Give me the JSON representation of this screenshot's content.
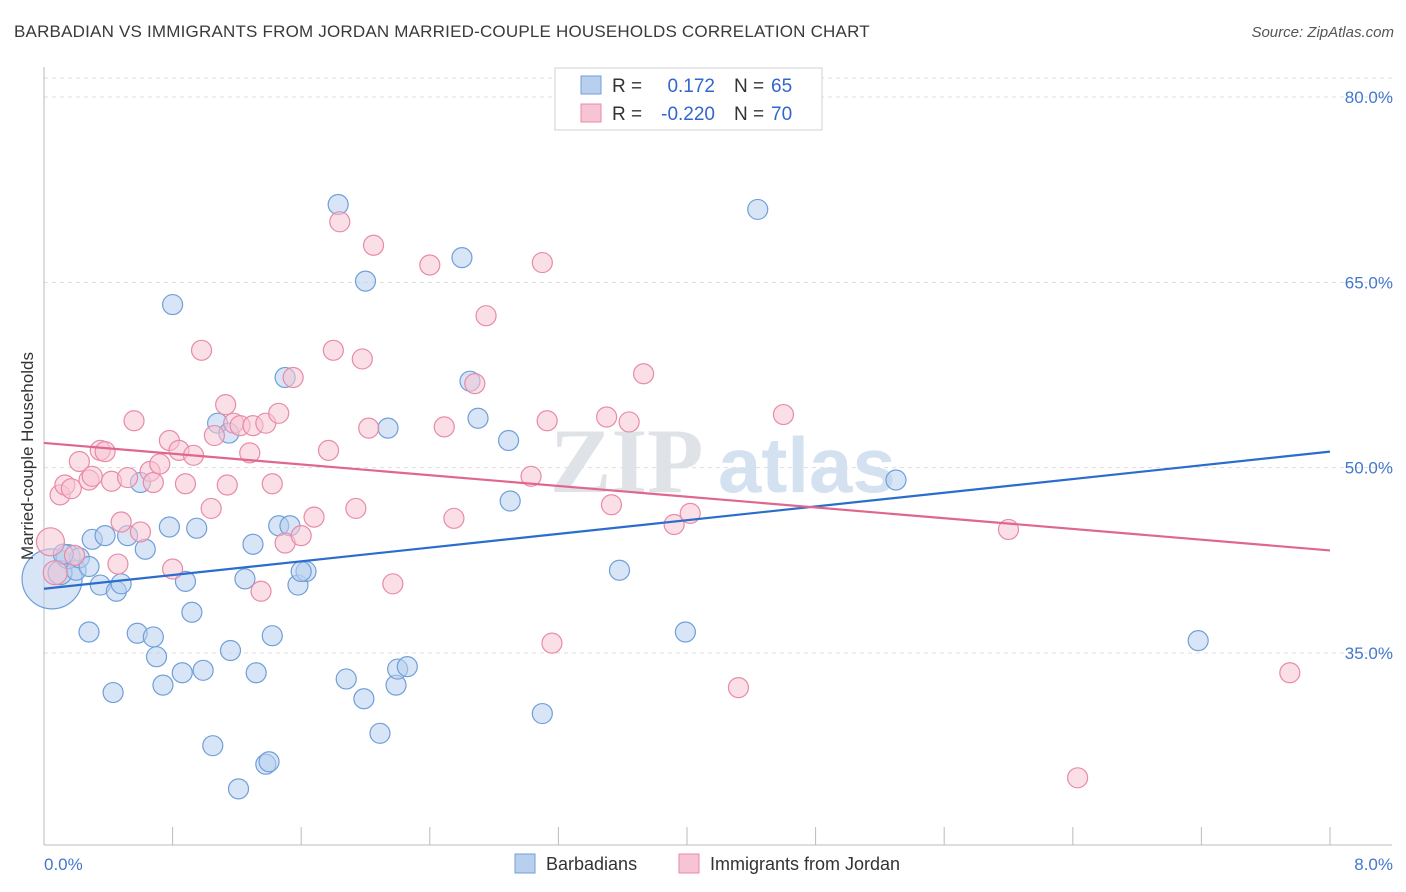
{
  "title": "BARBADIAN VS IMMIGRANTS FROM JORDAN MARRIED-COUPLE HOUSEHOLDS CORRELATION CHART",
  "source": "Source: ZipAtlas.com",
  "watermark": {
    "zip": "ZIP",
    "atlas": "atlas"
  },
  "legend": {
    "r_label": "R =",
    "n_label": "N =",
    "series1": {
      "r": "0.172",
      "n": "65"
    },
    "series2": {
      "r": "-0.220",
      "n": "70"
    }
  },
  "bottom_legend": [
    "Barbadians",
    "Immigrants from Jordan"
  ],
  "colors": {
    "blue_fill": "#b8d0ee",
    "blue_stroke": "#6f9fd8",
    "blue_line": "#2a6dcc",
    "pink_fill": "#f7c4d3",
    "pink_stroke": "#e88aa8",
    "pink_line": "#e0668f"
  },
  "chart_data": {
    "type": "scatter",
    "title": "BARBADIAN VS IMMIGRANTS FROM JORDAN MARRIED-COUPLE HOUSEHOLDS CORRELATION CHART",
    "xlabel": "",
    "ylabel": "Married-couple Households",
    "xlim": [
      0.0,
      8.0
    ],
    "ylim": [
      21.0,
      82.0
    ],
    "x_tick_labels": [
      "0.0%",
      "8.0%"
    ],
    "y_ticks": [
      35.0,
      50.0,
      65.0,
      80.0
    ],
    "y_tick_labels": [
      "35.0%",
      "50.0%",
      "65.0%",
      "80.0%"
    ],
    "grid": true,
    "series": [
      {
        "name": "Barbadians",
        "color": "#6f9fd8",
        "trend": {
          "x": [
            0.0,
            8.0
          ],
          "y": [
            40.2,
            51.3
          ]
        },
        "points": [
          [
            0.05,
            41.0,
            30
          ],
          [
            0.1,
            41.5,
            12
          ],
          [
            0.15,
            42.8,
            12
          ],
          [
            0.2,
            41.7,
            10
          ],
          [
            0.22,
            42.7,
            10
          ],
          [
            0.28,
            42.0,
            10
          ],
          [
            0.3,
            44.2,
            10
          ],
          [
            0.35,
            40.5,
            10
          ],
          [
            0.38,
            44.5,
            10
          ],
          [
            0.45,
            40.0,
            10
          ],
          [
            0.48,
            40.6,
            10
          ],
          [
            0.28,
            36.7,
            10
          ],
          [
            0.52,
            44.5,
            10
          ],
          [
            0.58,
            36.6,
            10
          ],
          [
            0.63,
            43.4,
            10
          ],
          [
            0.68,
            36.3,
            10
          ],
          [
            0.7,
            34.7,
            10
          ],
          [
            0.74,
            32.4,
            10
          ],
          [
            0.78,
            45.2,
            10
          ],
          [
            0.8,
            63.2,
            10
          ],
          [
            0.86,
            33.4,
            10
          ],
          [
            0.88,
            40.8,
            10
          ],
          [
            0.92,
            38.3,
            10
          ],
          [
            0.95,
            45.1,
            10
          ],
          [
            0.99,
            33.6,
            10
          ],
          [
            1.05,
            27.5,
            10
          ],
          [
            1.08,
            53.6,
            10
          ],
          [
            1.15,
            52.8,
            10
          ],
          [
            1.16,
            35.2,
            10
          ],
          [
            1.21,
            24.0,
            10
          ],
          [
            1.25,
            41.0,
            10
          ],
          [
            1.3,
            43.8,
            10
          ],
          [
            1.32,
            33.4,
            10
          ],
          [
            1.38,
            26.0,
            10
          ],
          [
            1.4,
            26.2,
            10
          ],
          [
            1.42,
            36.4,
            10
          ],
          [
            1.46,
            45.3,
            10
          ],
          [
            1.53,
            45.3,
            10
          ],
          [
            1.5,
            57.3,
            10
          ],
          [
            1.58,
            40.5,
            10
          ],
          [
            1.63,
            41.6,
            10
          ],
          [
            1.6,
            41.6,
            10
          ],
          [
            0.43,
            31.8,
            10
          ],
          [
            1.83,
            71.3,
            10
          ],
          [
            1.88,
            32.9,
            10
          ],
          [
            1.99,
            31.3,
            10
          ],
          [
            2.0,
            65.1,
            10
          ],
          [
            2.09,
            28.5,
            10
          ],
          [
            2.14,
            53.2,
            10
          ],
          [
            2.19,
            32.4,
            10
          ],
          [
            2.2,
            33.7,
            10
          ],
          [
            2.26,
            33.9,
            10
          ],
          [
            2.6,
            67.0,
            10
          ],
          [
            2.65,
            57.0,
            10
          ],
          [
            2.7,
            54.0,
            10
          ],
          [
            2.89,
            52.2,
            10
          ],
          [
            2.9,
            47.3,
            10
          ],
          [
            3.1,
            30.1,
            10
          ],
          [
            3.58,
            41.7,
            10
          ],
          [
            3.99,
            36.7,
            10
          ],
          [
            4.44,
            70.9,
            10
          ],
          [
            5.3,
            49.0,
            10
          ],
          [
            7.18,
            36.0,
            10
          ],
          [
            0.12,
            43.0,
            10
          ],
          [
            0.6,
            48.8,
            10
          ]
        ]
      },
      {
        "name": "Immigrants from Jordan",
        "color": "#e88aa8",
        "trend": {
          "x": [
            0.0,
            8.0
          ],
          "y": [
            52.0,
            43.3
          ]
        },
        "points": [
          [
            0.04,
            44.0,
            14
          ],
          [
            0.07,
            41.5,
            12
          ],
          [
            0.1,
            47.8,
            10
          ],
          [
            0.13,
            48.6,
            10
          ],
          [
            0.17,
            48.3,
            10
          ],
          [
            0.22,
            50.5,
            10
          ],
          [
            0.28,
            49.0,
            10
          ],
          [
            0.3,
            49.3,
            10
          ],
          [
            0.35,
            51.4,
            10
          ],
          [
            0.38,
            51.3,
            10
          ],
          [
            0.42,
            48.9,
            10
          ],
          [
            0.46,
            42.2,
            10
          ],
          [
            0.48,
            45.6,
            10
          ],
          [
            0.52,
            49.2,
            10
          ],
          [
            0.56,
            53.8,
            10
          ],
          [
            0.6,
            44.8,
            10
          ],
          [
            0.66,
            49.7,
            10
          ],
          [
            0.68,
            48.8,
            10
          ],
          [
            0.72,
            50.3,
            10
          ],
          [
            0.78,
            52.2,
            10
          ],
          [
            0.8,
            41.8,
            10
          ],
          [
            0.84,
            51.4,
            10
          ],
          [
            0.88,
            48.7,
            10
          ],
          [
            0.93,
            51.0,
            10
          ],
          [
            0.98,
            59.5,
            10
          ],
          [
            1.04,
            46.7,
            10
          ],
          [
            1.06,
            52.6,
            10
          ],
          [
            1.13,
            55.1,
            10
          ],
          [
            1.14,
            48.6,
            10
          ],
          [
            1.18,
            53.6,
            10
          ],
          [
            1.22,
            53.4,
            10
          ],
          [
            1.28,
            51.2,
            10
          ],
          [
            1.3,
            53.4,
            10
          ],
          [
            1.35,
            40.0,
            10
          ],
          [
            1.38,
            53.6,
            10
          ],
          [
            1.42,
            48.7,
            10
          ],
          [
            1.46,
            54.4,
            10
          ],
          [
            1.5,
            43.9,
            10
          ],
          [
            1.55,
            57.3,
            10
          ],
          [
            1.6,
            44.5,
            10
          ],
          [
            1.68,
            46.0,
            10
          ],
          [
            1.77,
            51.4,
            10
          ],
          [
            1.8,
            59.5,
            10
          ],
          [
            1.84,
            69.9,
            10
          ],
          [
            1.94,
            46.7,
            10
          ],
          [
            1.98,
            58.8,
            10
          ],
          [
            2.02,
            53.2,
            10
          ],
          [
            2.05,
            68.0,
            10
          ],
          [
            2.17,
            40.6,
            10
          ],
          [
            2.4,
            66.4,
            10
          ],
          [
            2.49,
            53.3,
            10
          ],
          [
            2.55,
            45.9,
            10
          ],
          [
            2.68,
            56.8,
            10
          ],
          [
            2.75,
            62.3,
            10
          ],
          [
            3.03,
            49.3,
            10
          ],
          [
            3.1,
            66.6,
            10
          ],
          [
            3.13,
            53.8,
            10
          ],
          [
            3.16,
            35.8,
            10
          ],
          [
            3.5,
            54.1,
            10
          ],
          [
            3.53,
            47.0,
            10
          ],
          [
            3.64,
            53.7,
            10
          ],
          [
            3.73,
            57.6,
            10
          ],
          [
            3.92,
            45.4,
            10
          ],
          [
            4.02,
            46.3,
            10
          ],
          [
            4.32,
            32.2,
            10
          ],
          [
            4.6,
            54.3,
            10
          ],
          [
            6.0,
            45.0,
            10
          ],
          [
            6.43,
            24.9,
            10
          ],
          [
            7.75,
            33.4,
            10
          ],
          [
            0.19,
            42.9,
            10
          ]
        ]
      }
    ]
  }
}
